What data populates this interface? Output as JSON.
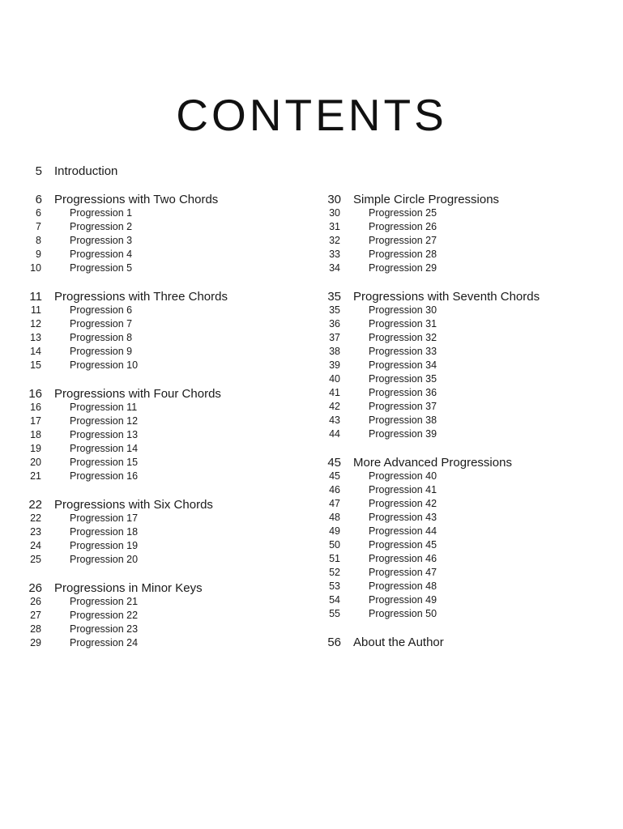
{
  "title": "CONTENTS",
  "left_column": [
    {
      "page": "5",
      "title": "Introduction",
      "items": []
    },
    {
      "page": "6",
      "title": "Progressions with Two Chords",
      "items": [
        {
          "page": "6",
          "title": "Progression 1"
        },
        {
          "page": "7",
          "title": "Progression 2"
        },
        {
          "page": "8",
          "title": "Progression 3"
        },
        {
          "page": "9",
          "title": "Progression 4"
        },
        {
          "page": "10",
          "title": "Progression 5"
        }
      ]
    },
    {
      "page": "11",
      "title": "Progressions with Three Chords",
      "items": [
        {
          "page": "11",
          "title": "Progression 6"
        },
        {
          "page": "12",
          "title": "Progression 7"
        },
        {
          "page": "13",
          "title": "Progression 8"
        },
        {
          "page": "14",
          "title": "Progression 9"
        },
        {
          "page": "15",
          "title": "Progression 10"
        }
      ]
    },
    {
      "page": "16",
      "title": "Progressions with Four Chords",
      "items": [
        {
          "page": "16",
          "title": "Progression 11"
        },
        {
          "page": "17",
          "title": "Progression 12"
        },
        {
          "page": "18",
          "title": "Progression 13"
        },
        {
          "page": "19",
          "title": "Progression 14"
        },
        {
          "page": "20",
          "title": "Progression 15"
        },
        {
          "page": "21",
          "title": "Progression 16"
        }
      ]
    },
    {
      "page": "22",
      "title": "Progressions with Six Chords",
      "items": [
        {
          "page": "22",
          "title": "Progression 17"
        },
        {
          "page": "23",
          "title": "Progression 18"
        },
        {
          "page": "24",
          "title": "Progression 19"
        },
        {
          "page": "25",
          "title": "Progression 20"
        }
      ]
    },
    {
      "page": "26",
      "title": "Progressions in Minor Keys",
      "items": [
        {
          "page": "26",
          "title": "Progression 21"
        },
        {
          "page": "27",
          "title": "Progression 22"
        },
        {
          "page": "28",
          "title": "Progression 23"
        },
        {
          "page": "29",
          "title": "Progression 24"
        }
      ]
    }
  ],
  "right_column": [
    {
      "page": "30",
      "title": "Simple Circle Progressions",
      "items": [
        {
          "page": "30",
          "title": "Progression 25"
        },
        {
          "page": "31",
          "title": "Progression 26"
        },
        {
          "page": "32",
          "title": "Progression 27"
        },
        {
          "page": "33",
          "title": "Progression 28"
        },
        {
          "page": "34",
          "title": "Progression 29"
        }
      ]
    },
    {
      "page": "35",
      "title": "Progressions with Seventh Chords",
      "items": [
        {
          "page": "35",
          "title": "Progression 30"
        },
        {
          "page": "36",
          "title": "Progression 31"
        },
        {
          "page": "37",
          "title": "Progression 32"
        },
        {
          "page": "38",
          "title": "Progression 33"
        },
        {
          "page": "39",
          "title": "Progression 34"
        },
        {
          "page": "40",
          "title": "Progression 35"
        },
        {
          "page": "41",
          "title": "Progression 36"
        },
        {
          "page": "42",
          "title": "Progression 37"
        },
        {
          "page": "43",
          "title": "Progression 38"
        },
        {
          "page": "44",
          "title": "Progression 39"
        }
      ]
    },
    {
      "page": "45",
      "title": "More Advanced Progressions",
      "items": [
        {
          "page": "45",
          "title": "Progression 40"
        },
        {
          "page": "46",
          "title": "Progression 41"
        },
        {
          "page": "47",
          "title": "Progression 42"
        },
        {
          "page": "48",
          "title": "Progression 43"
        },
        {
          "page": "49",
          "title": "Progression 44"
        },
        {
          "page": "50",
          "title": "Progression 45"
        },
        {
          "page": "51",
          "title": "Progression 46"
        },
        {
          "page": "52",
          "title": "Progression 47"
        },
        {
          "page": "53",
          "title": "Progression 48"
        },
        {
          "page": "54",
          "title": "Progression 49"
        },
        {
          "page": "55",
          "title": "Progression 50"
        }
      ]
    },
    {
      "page": "56",
      "title": "About the Author",
      "items": []
    }
  ]
}
